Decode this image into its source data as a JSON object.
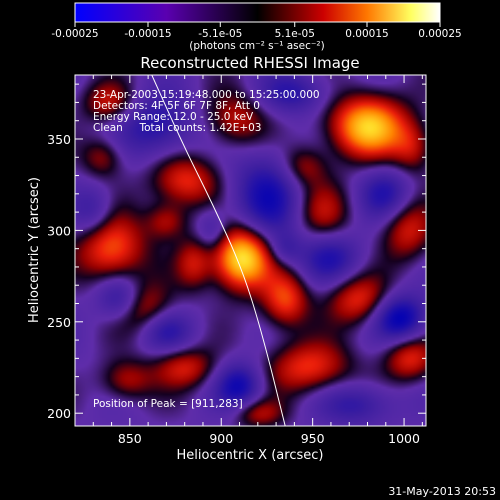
{
  "chart_data": {
    "type": "heatmap",
    "title": "Reconstructed RHESSI Image",
    "xlabel": "Heliocentric X (arcsec)",
    "ylabel": "Heliocentric Y (arcsec)",
    "xlim": [
      820,
      1012
    ],
    "ylim": [
      193,
      385
    ],
    "xticks": [
      850,
      900,
      950,
      1000
    ],
    "yticks": [
      200,
      250,
      300,
      350
    ],
    "colorbar": {
      "ticks": [
        {
          "label": "-0.00025",
          "value": -0.00025
        },
        {
          "label": "-0.00015",
          "value": -0.00015
        },
        {
          "label": "-5.1e-05",
          "value": -5.1e-05
        },
        {
          "label": "5.1e-05",
          "value": 5.1e-05
        },
        {
          "label": "0.00015",
          "value": 0.00015
        },
        {
          "label": "0.00025",
          "value": 0.00025
        }
      ],
      "unit_label": "(photons cm⁻² s⁻¹ asec⁻²)",
      "colors": [
        "#0000ff",
        "#5a00b0",
        "#000000",
        "#cc0000",
        "#ff7700",
        "#ffff60",
        "#ffffff"
      ]
    },
    "annotations": [
      "23-Apr-2003 15:19:48.000 to 15:25:00.000",
      "Detectors: 4F 5F 6F 7F 8F, Att 0",
      "Energy Range: 12.0 - 25.0 keV",
      "Clean     Total counts: 1.42E+03"
    ],
    "peak_label": "Position of Peak = [911,283]",
    "peak": {
      "x": 911,
      "y": 283
    },
    "limb_curve": [
      {
        "x": 862,
        "y": 385
      },
      {
        "x": 880,
        "y": 345
      },
      {
        "x": 895,
        "y": 315
      },
      {
        "x": 911,
        "y": 280
      },
      {
        "x": 922,
        "y": 245
      },
      {
        "x": 935,
        "y": 193
      }
    ],
    "blobs": [
      {
        "x": 911,
        "y": 285,
        "sx": 11,
        "sy": 12,
        "a": 2.6
      },
      {
        "x": 980,
        "y": 357,
        "sx": 15,
        "sy": 12,
        "a": 2.2
      },
      {
        "x": 840,
        "y": 290,
        "sx": 13,
        "sy": 13,
        "a": 1.6
      },
      {
        "x": 880,
        "y": 327,
        "sx": 13,
        "sy": 10,
        "a": 1.3
      },
      {
        "x": 935,
        "y": 262,
        "sx": 9,
        "sy": 11,
        "a": 1.4
      },
      {
        "x": 855,
        "y": 258,
        "sx": 12,
        "sy": 10,
        "a": 1.25
      },
      {
        "x": 908,
        "y": 360,
        "sx": 12,
        "sy": 11,
        "a": 1.05
      },
      {
        "x": 948,
        "y": 225,
        "sx": 16,
        "sy": 10,
        "a": 1.3
      },
      {
        "x": 975,
        "y": 262,
        "sx": 12,
        "sy": 10,
        "a": 1.25
      },
      {
        "x": 1002,
        "y": 300,
        "sx": 10,
        "sy": 12,
        "a": 1.1
      },
      {
        "x": 1003,
        "y": 230,
        "sx": 10,
        "sy": 9,
        "a": 1.2
      },
      {
        "x": 880,
        "y": 225,
        "sx": 12,
        "sy": 8,
        "a": 1.1
      },
      {
        "x": 848,
        "y": 218,
        "sx": 10,
        "sy": 8,
        "a": 0.95
      },
      {
        "x": 838,
        "y": 370,
        "sx": 10,
        "sy": 8,
        "a": 1.0
      },
      {
        "x": 955,
        "y": 310,
        "sx": 11,
        "sy": 12,
        "a": 0.9
      },
      {
        "x": 885,
        "y": 282,
        "sx": 7,
        "sy": 10,
        "a": 0.95
      },
      {
        "x": 945,
        "y": 335,
        "sx": 9,
        "sy": 8,
        "a": 0.9
      },
      {
        "x": 870,
        "y": 305,
        "sx": 8,
        "sy": 7,
        "a": 0.9
      },
      {
        "x": 920,
        "y": 200,
        "sx": 10,
        "sy": 6,
        "a": 0.9
      },
      {
        "x": 1005,
        "y": 345,
        "sx": 8,
        "sy": 10,
        "a": 0.9
      },
      {
        "x": 835,
        "y": 340,
        "sx": 8,
        "sy": 8,
        "a": 0.85
      },
      {
        "x": 845,
        "y": 262,
        "sx": 9,
        "sy": 9,
        "a": -1.4
      },
      {
        "x": 910,
        "y": 215,
        "sx": 9,
        "sy": 9,
        "a": -1.3
      },
      {
        "x": 998,
        "y": 252,
        "sx": 10,
        "sy": 9,
        "a": -1.6
      },
      {
        "x": 925,
        "y": 318,
        "sx": 14,
        "sy": 18,
        "a": -1.2
      },
      {
        "x": 960,
        "y": 285,
        "sx": 12,
        "sy": 10,
        "a": -1.0
      },
      {
        "x": 865,
        "y": 357,
        "sx": 14,
        "sy": 12,
        "a": -1.1
      },
      {
        "x": 940,
        "y": 375,
        "sx": 14,
        "sy": 8,
        "a": -0.9
      },
      {
        "x": 990,
        "y": 320,
        "sx": 10,
        "sy": 10,
        "a": -1.0
      },
      {
        "x": 870,
        "y": 245,
        "sx": 10,
        "sy": 8,
        "a": -0.9
      },
      {
        "x": 975,
        "y": 205,
        "sx": 14,
        "sy": 8,
        "a": -0.9
      },
      {
        "x": 830,
        "y": 310,
        "sx": 8,
        "sy": 10,
        "a": -0.8
      },
      {
        "x": 895,
        "y": 300,
        "sx": 6,
        "sy": 8,
        "a": -0.7
      },
      {
        "x": 935,
        "y": 290,
        "sx": 6,
        "sy": 6,
        "a": -0.6
      }
    ]
  },
  "footer": {
    "timestamp": "31-May-2013 20:53"
  }
}
